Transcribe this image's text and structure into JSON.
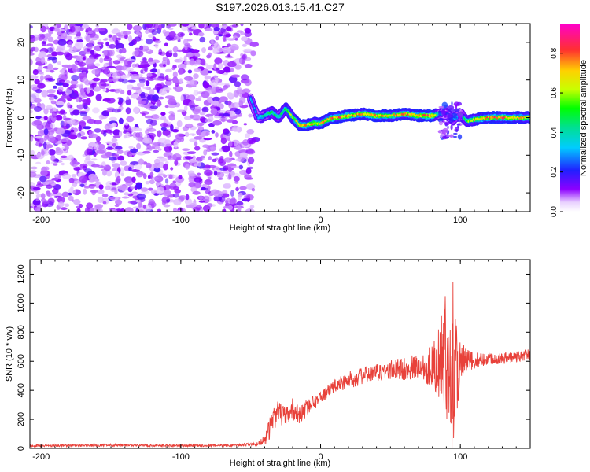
{
  "title": "S197.2026.013.15.41.C27",
  "chart_data": [
    {
      "type": "heatmap",
      "xlabel": "Height of straight line (km)",
      "ylabel": "Frequency (Hz)",
      "xlim": [
        -208,
        150
      ],
      "ylim": [
        -25,
        25
      ],
      "xticks": [
        -200,
        -100,
        0,
        100
      ],
      "yticks": [
        -20,
        -10,
        0,
        10,
        20
      ],
      "colorbar": {
        "label": "Normalized spectral amplitude",
        "range": [
          0,
          0.95
        ],
        "ticks": [
          0.0,
          0.2,
          0.4,
          0.6,
          0.8
        ]
      },
      "noise_region_x": [
        -208,
        -50
      ],
      "ridge": {
        "x": [
          -50,
          -45,
          -40,
          -35,
          -30,
          -25,
          -20,
          -15,
          -10,
          -5,
          0,
          5,
          10,
          20,
          30,
          40,
          50,
          60,
          70,
          80,
          85,
          90,
          95,
          100,
          105,
          110,
          120,
          130,
          140,
          150
        ],
        "freq": [
          5,
          0,
          0.5,
          1.5,
          0,
          2.5,
          0,
          -2,
          -2,
          -1.5,
          -1.5,
          -0.5,
          0,
          0.5,
          1,
          0.5,
          0.5,
          1,
          0.5,
          0.5,
          1,
          1,
          -0.5,
          1,
          -1,
          -0.5,
          0,
          0,
          0,
          0
        ],
        "amp": [
          0.35,
          0.35,
          0.45,
          0.5,
          0.45,
          0.55,
          0.6,
          0.8,
          0.75,
          0.7,
          0.7,
          0.75,
          0.8,
          0.8,
          0.75,
          0.8,
          0.7,
          0.8,
          0.75,
          0.85,
          0.4,
          0.3,
          0.35,
          0.4,
          0.55,
          0.7,
          0.8,
          0.8,
          0.75,
          0.7
        ]
      }
    },
    {
      "type": "line",
      "xlabel": "Height of straight line (km)",
      "ylabel": "SNR (10 * v/v)",
      "xlim": [
        -208,
        150
      ],
      "ylim": [
        0,
        1300
      ],
      "xticks": [
        -200,
        -100,
        0,
        100
      ],
      "yticks": [
        0,
        200,
        400,
        600,
        800,
        1000,
        1200
      ],
      "series": [
        {
          "color": "#e8413a",
          "x": [
            -208,
            -180,
            -150,
            -120,
            -100,
            -80,
            -60,
            -45,
            -40,
            -37,
            -35,
            -30,
            -25,
            -20,
            -15,
            -10,
            0,
            10,
            20,
            30,
            40,
            50,
            60,
            70,
            80,
            85,
            88,
            90,
            92,
            94,
            95,
            96,
            98,
            100,
            103,
            110,
            120,
            130,
            140,
            150
          ],
          "mean": [
            18,
            20,
            22,
            20,
            20,
            20,
            22,
            30,
            60,
            120,
            200,
            250,
            210,
            270,
            230,
            280,
            350,
            430,
            470,
            500,
            520,
            540,
            550,
            560,
            570,
            590,
            620,
            630,
            600,
            570,
            560,
            580,
            560,
            580,
            600,
            600,
            620,
            620,
            630,
            650
          ],
          "amp": [
            8,
            8,
            9,
            8,
            8,
            8,
            8,
            12,
            40,
            70,
            90,
            80,
            70,
            80,
            60,
            60,
            40,
            50,
            60,
            60,
            60,
            70,
            80,
            90,
            150,
            250,
            400,
            450,
            350,
            600,
            700,
            600,
            300,
            200,
            100,
            60,
            40,
            40,
            40,
            40
          ]
        }
      ]
    }
  ]
}
